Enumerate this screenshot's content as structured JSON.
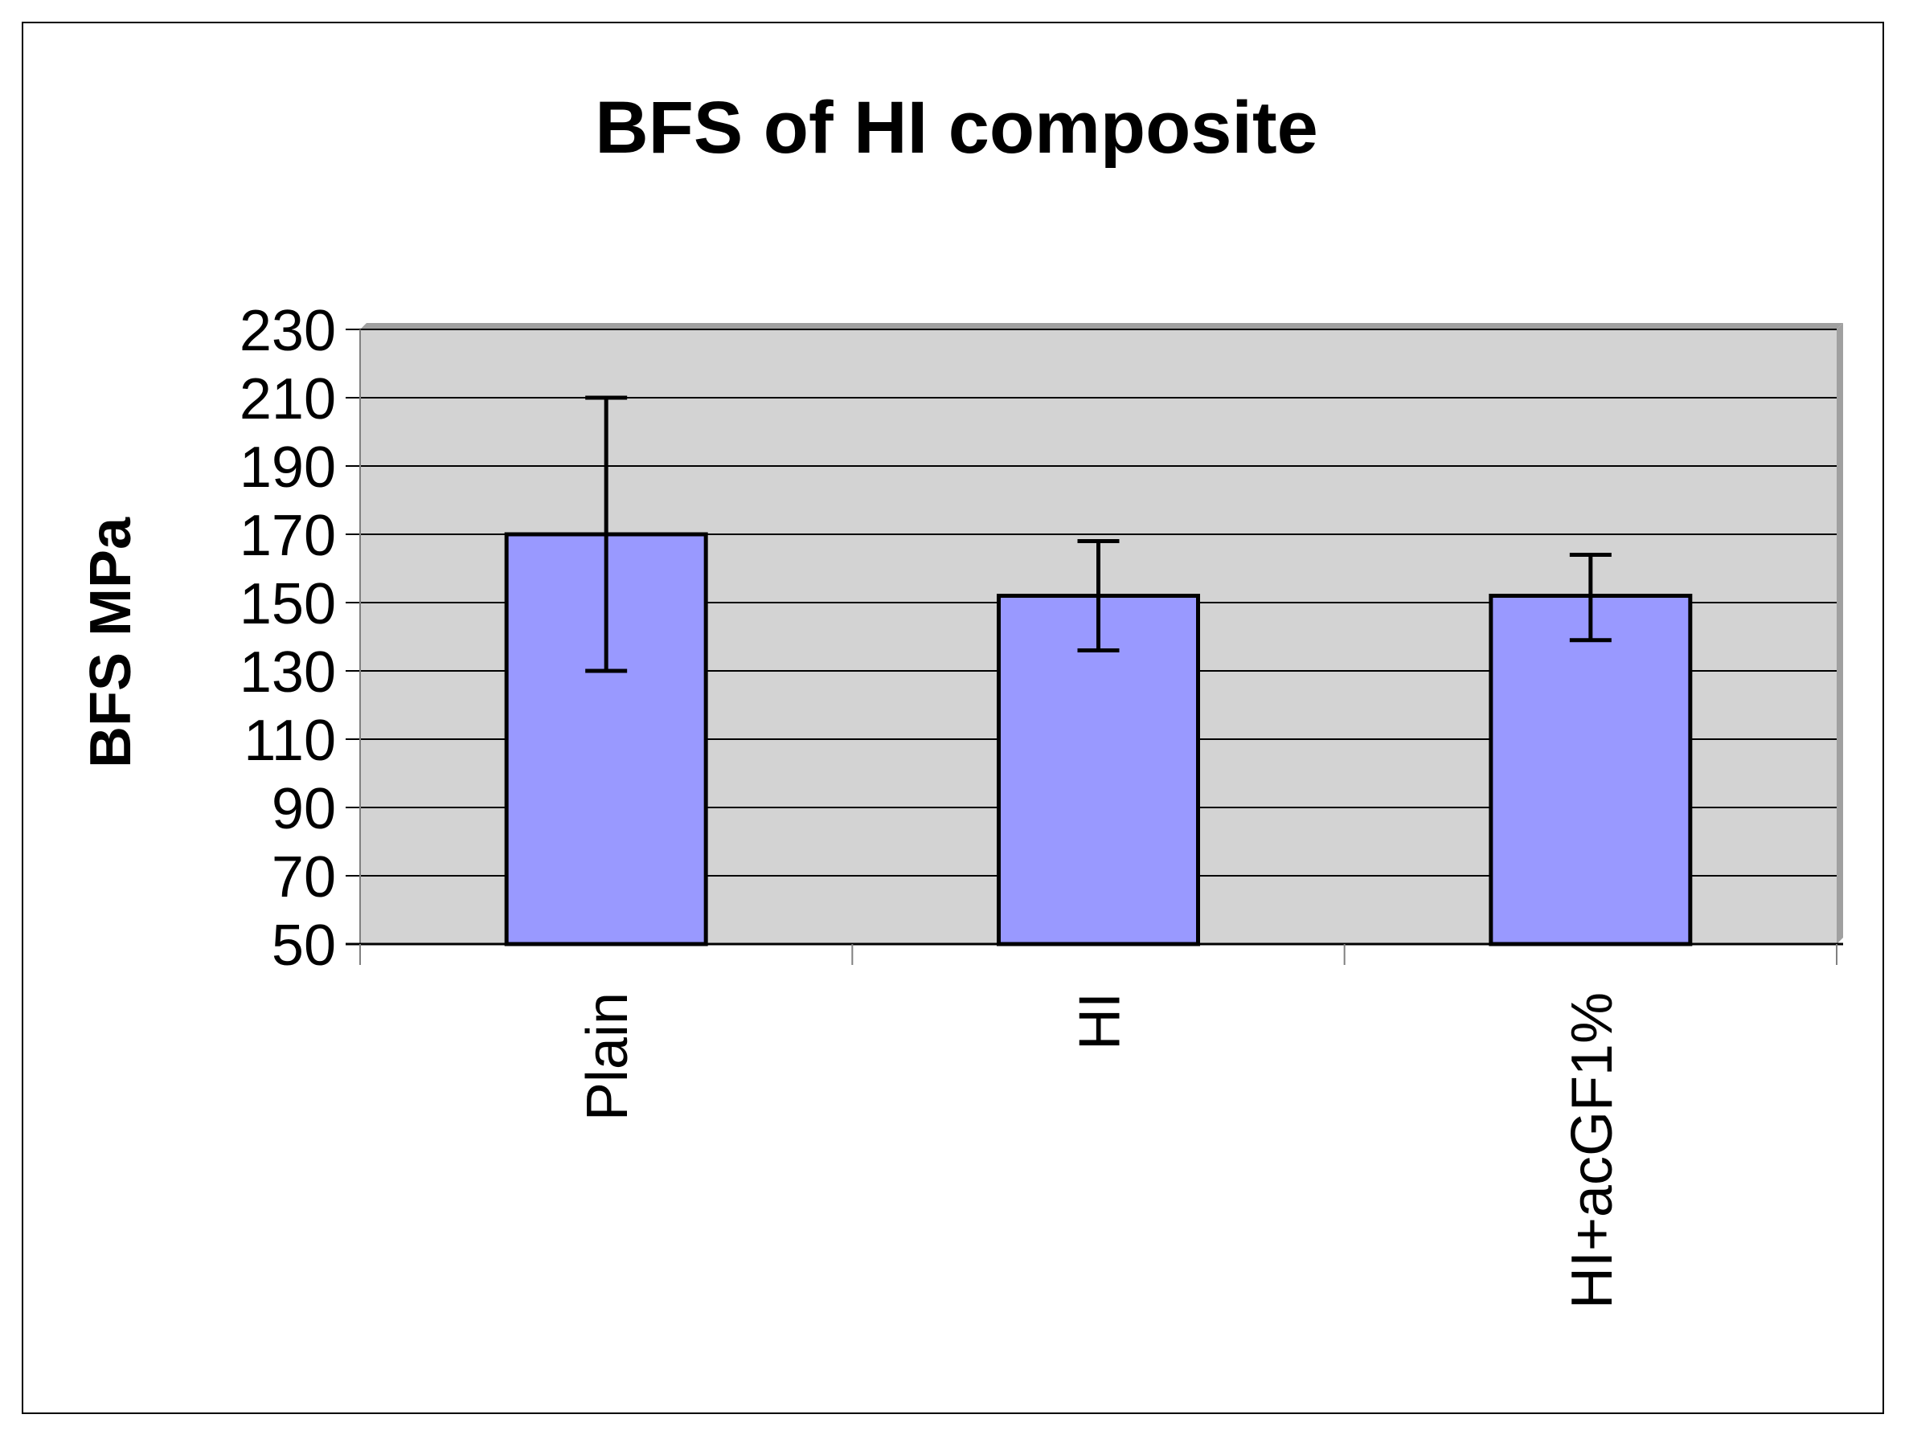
{
  "chart_data": {
    "type": "bar",
    "title": "BFS of HI composite",
    "xlabel": "",
    "ylabel": "BFS MPa",
    "categories": [
      "Plain",
      "HI",
      "HI+acGF1%"
    ],
    "values": [
      170,
      152,
      152
    ],
    "error_high": [
      210,
      168,
      164
    ],
    "error_low": [
      130,
      136,
      139
    ],
    "ylim": [
      50,
      230
    ],
    "yticks": [
      "50",
      "70",
      "90",
      "110",
      "130",
      "150",
      "170",
      "190",
      "210",
      "230"
    ],
    "grid": true,
    "legend": "none",
    "colors": {
      "bar": "#9999ff",
      "plot_background": "#d3d3d3",
      "gridline": "#000000"
    }
  }
}
